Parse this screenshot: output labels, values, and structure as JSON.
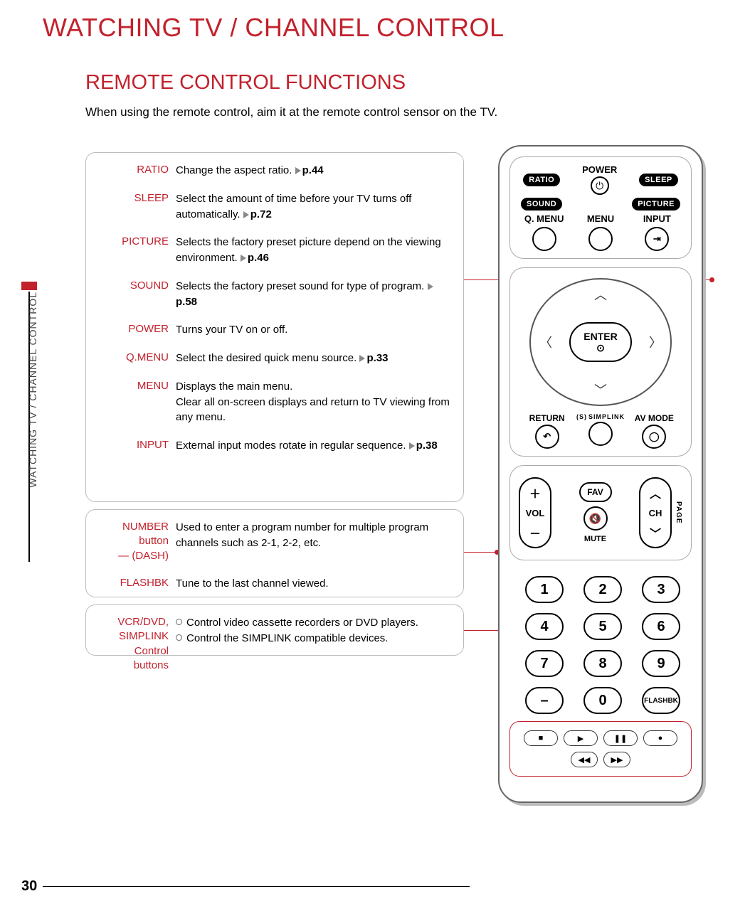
{
  "page": {
    "title": "WATCHING TV / CHANNEL CONTROL",
    "section": "REMOTE CONTROL FUNCTIONS",
    "subtitle": "When using the remote control, aim it at the remote control sensor on the TV.",
    "side_tab": "WATCHING TV / CHANNEL CONTROL",
    "number": "30"
  },
  "colors": {
    "accent": "#c2212c",
    "text": "#000000",
    "border": "#bbbbbb",
    "shadow": "#bbbbbb"
  },
  "functions_box1": [
    {
      "label": "RATIO",
      "desc": "Change the aspect ratio.",
      "page": "p.44"
    },
    {
      "label": "SLEEP",
      "desc": "Select the amount of time before your TV turns off automatically.",
      "page": "p.72"
    },
    {
      "label": "PICTURE",
      "desc": "Selects the factory preset picture depend on the viewing environment.",
      "page": "p.46"
    },
    {
      "label": "SOUND",
      "desc": "Selects the factory preset sound for type of program.",
      "page": "p.58"
    },
    {
      "label": "POWER",
      "desc": "Turns your TV on or off.",
      "page": ""
    },
    {
      "label": "Q.MENU",
      "desc": "Select the desired quick menu source.",
      "page": "p.33"
    },
    {
      "label": "MENU",
      "desc": "Displays the main menu.\nClear all on-screen displays and return to TV viewing from any menu.",
      "page": ""
    },
    {
      "label": "INPUT",
      "desc": "External input modes rotate in regular sequence.",
      "page": "p.38"
    }
  ],
  "functions_box2": [
    {
      "label": "NUMBER button\n— (DASH)",
      "desc": "Used to enter a program number for multiple program channels such as 2-1, 2-2, etc.",
      "page": ""
    },
    {
      "label": "FLASHBK",
      "desc": "Tune to the last channel viewed.",
      "page": ""
    }
  ],
  "functions_box3": {
    "label": "VCR/DVD,\nSIMPLINK\nControl buttons",
    "bullets": [
      "Control video cassette recorders or DVD players.",
      "Control the SIMPLINK compatible devices."
    ]
  },
  "remote": {
    "top_pills_row1": [
      "RATIO",
      "SLEEP"
    ],
    "top_pills_row2": [
      "SOUND",
      "PICTURE"
    ],
    "power_label": "POWER",
    "menu_row": [
      "Q. MENU",
      "MENU",
      "INPUT"
    ],
    "enter_label": "ENTER",
    "return_label": "RETURN",
    "simplink_label": "SIMPLINK",
    "avmode_label": "AV MODE",
    "vol_label": "VOL",
    "ch_label": "CH",
    "fav_label": "FAV",
    "mute_label": "MUTE",
    "page_label": "PAGE",
    "keypad": [
      "1",
      "2",
      "3",
      "4",
      "5",
      "6",
      "7",
      "8",
      "9",
      "–",
      "0",
      "FLASHBK"
    ],
    "transport_row1": [
      "■",
      "▶",
      "❚❚",
      "●"
    ],
    "transport_row2": [
      "◀◀",
      "▶▶"
    ]
  }
}
